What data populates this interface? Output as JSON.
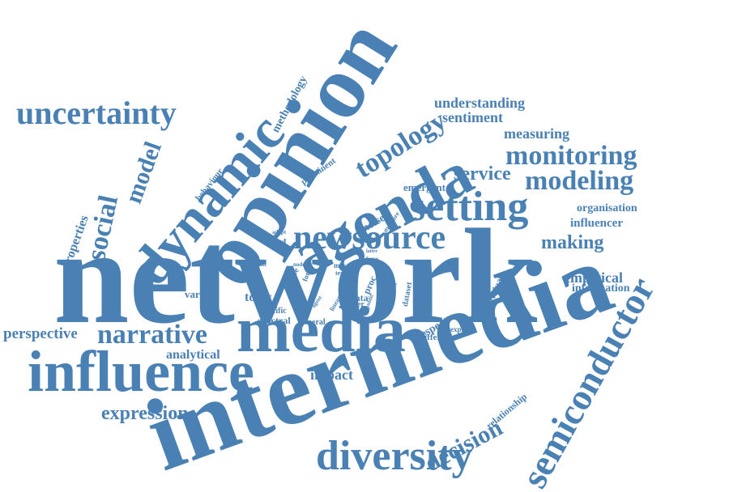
{
  "accent_color": "#4a81b4",
  "background_color": "#ffffff",
  "words": [
    {
      "id": "network",
      "text": "network"
    },
    {
      "id": "intermedia",
      "text": "intermedia"
    },
    {
      "id": "opinion",
      "text": "opinion"
    },
    {
      "id": "influence",
      "text": "influence"
    },
    {
      "id": "media",
      "text": "media"
    },
    {
      "id": "agenda",
      "text": "agenda"
    },
    {
      "id": "dynamic",
      "text": "dynamic"
    },
    {
      "id": "semiconductor",
      "text": "semiconductor"
    },
    {
      "id": "diversity",
      "text": "diversity"
    },
    {
      "id": "newsource",
      "text": "newsource"
    },
    {
      "id": "setting",
      "text": "setting"
    },
    {
      "id": "uncertainty",
      "text": "uncertainty"
    },
    {
      "id": "narrative",
      "text": "narrative"
    },
    {
      "id": "monitoring",
      "text": "monitoring"
    },
    {
      "id": "modeling",
      "text": "modeling"
    },
    {
      "id": "topology",
      "text": "topology"
    },
    {
      "id": "social",
      "text": "social"
    },
    {
      "id": "model",
      "text": "model"
    },
    {
      "id": "expression",
      "text": "expression"
    },
    {
      "id": "decision",
      "text": "decision"
    },
    {
      "id": "service",
      "text": "service"
    },
    {
      "id": "making",
      "text": "making"
    },
    {
      "id": "perspective",
      "text": "perspective"
    },
    {
      "id": "understanding",
      "text": "understanding"
    },
    {
      "id": "sentiment",
      "text": "sentiment"
    },
    {
      "id": "measuring",
      "text": "measuring"
    },
    {
      "id": "impact",
      "text": "impact"
    },
    {
      "id": "analytical",
      "text": "analytical"
    },
    {
      "id": "empirical",
      "text": "empirical"
    },
    {
      "id": "influencer",
      "text": "influencer"
    },
    {
      "id": "organisation",
      "text": "organisation"
    },
    {
      "id": "information",
      "text": "information"
    },
    {
      "id": "methodology",
      "text": "methodology"
    },
    {
      "id": "properties",
      "text": "properties"
    },
    {
      "id": "topic",
      "text": "topic"
    },
    {
      "id": "noise",
      "text": "noise"
    },
    {
      "id": "respect",
      "text": "respect"
    },
    {
      "id": "relationship",
      "text": "relationship"
    },
    {
      "id": "various",
      "text": "various"
    },
    {
      "id": "lead",
      "text": "lead"
    },
    {
      "id": "emergent",
      "text": "emergent"
    },
    {
      "id": "prominent",
      "text": "prominent"
    },
    {
      "id": "behaviour",
      "text": "behaviour"
    },
    {
      "id": "spectral",
      "text": "spectral"
    },
    {
      "id": "specific",
      "text": "specific"
    },
    {
      "id": "general",
      "text": "general"
    },
    {
      "id": "different",
      "text": "different"
    },
    {
      "id": "express",
      "text": "express"
    },
    {
      "id": "individual",
      "text": "individual"
    },
    {
      "id": "data",
      "text": "data"
    },
    {
      "id": "other",
      "text": "other"
    },
    {
      "id": "proc",
      "text": "proc"
    },
    {
      "id": "dataset",
      "text": "dataset"
    },
    {
      "id": "measure",
      "text": "measure"
    },
    {
      "id": "article",
      "text": "article"
    },
    {
      "id": "form",
      "text": "form"
    },
    {
      "id": "agent",
      "text": "agent"
    },
    {
      "id": "linear",
      "text": "linear"
    },
    {
      "id": "public",
      "text": "public"
    },
    {
      "id": "thesis",
      "text": "thesis"
    },
    {
      "id": "subject",
      "text": "subject"
    },
    {
      "id": "mas",
      "text": "mas"
    },
    {
      "id": "test",
      "text": "test"
    },
    {
      "id": "hold",
      "text": "hold"
    },
    {
      "id": "latter",
      "text": "latter"
    },
    {
      "id": "force",
      "text": "force"
    },
    {
      "id": "adopt",
      "text": "adopt"
    },
    {
      "id": "result",
      "text": "result"
    },
    {
      "id": "node",
      "text": "node"
    }
  ]
}
